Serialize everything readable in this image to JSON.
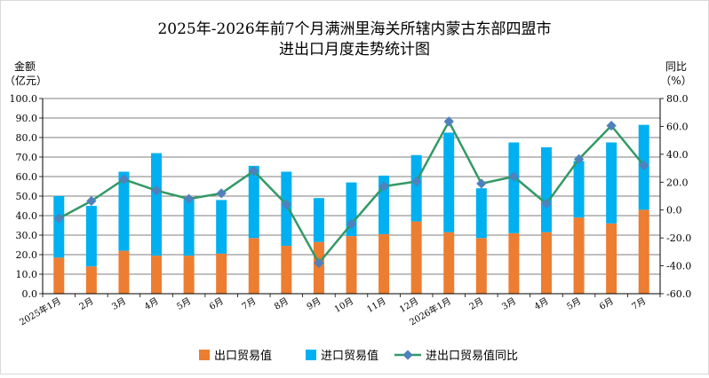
{
  "chart_data": {
    "type": "bar",
    "title_line1": "2025年-2026年前7个月满洲里海关所辖内蒙古东部四盟市",
    "title_line2": "进出口月度走势统计图",
    "ylabel_left_line1": "金额",
    "ylabel_left_line2": "（亿元）",
    "ylabel_right_line1": "同比",
    "ylabel_right_line2": "（%）",
    "categories": [
      "2025年1月",
      "2月",
      "3月",
      "4月",
      "5月",
      "6月",
      "7月",
      "8月",
      "9月",
      "10月",
      "11月",
      "12月",
      "2026年1月",
      "2月",
      "3月",
      "4月",
      "5月",
      "6月",
      "7月"
    ],
    "ylim_left": [
      0,
      100
    ],
    "yticks_left": [
      "0.0",
      "10.0",
      "20.0",
      "30.0",
      "40.0",
      "50.0",
      "60.0",
      "70.0",
      "80.0",
      "90.0",
      "100.0"
    ],
    "ylim_right": [
      -60,
      80
    ],
    "yticks_right": [
      "-60.0",
      "-40.0",
      "-20.0",
      "0.0",
      "20.0",
      "40.0",
      "60.0",
      "80.0"
    ],
    "series": [
      {
        "name": "出口贸易值",
        "kind": "bar",
        "color": "#ED7D31",
        "values": [
          18.5,
          14.0,
          22.0,
          19.5,
          19.5,
          20.5,
          28.5,
          24.5,
          26.5,
          29.5,
          30.5,
          37.0,
          31.5,
          28.5,
          31.0,
          31.5,
          39.0,
          36.0,
          43.0
        ]
      },
      {
        "name": "进口贸易值",
        "kind": "bar",
        "color": "#00B0F0",
        "values": [
          31.5,
          31.0,
          40.5,
          52.5,
          30.0,
          27.5,
          37.0,
          38.0,
          22.5,
          27.5,
          30.0,
          34.0,
          51.0,
          25.5,
          46.5,
          43.5,
          29.0,
          41.5,
          43.5
        ]
      },
      {
        "name": "进出口贸易值同比",
        "kind": "line",
        "color": "#339966",
        "marker_color": "#4F81BD",
        "values": [
          -6.0,
          6.5,
          22.0,
          14.0,
          8.0,
          12.0,
          28.0,
          4.0,
          -38.0,
          -10.0,
          17.0,
          20.5,
          63.5,
          19.0,
          24.0,
          4.5,
          36.5,
          60.5,
          32.0
        ]
      }
    ],
    "legend_position": "bottom",
    "grid": true
  }
}
